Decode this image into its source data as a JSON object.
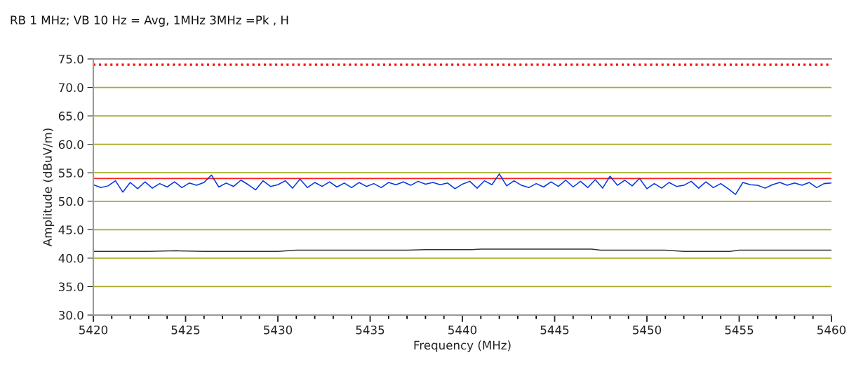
{
  "chart_data": {
    "type": "line",
    "title": "RB 1 MHz; VB 10 Hz = Avg, 1MHz 3MHz =Pk , H",
    "xlabel": "Frequency (MHz)",
    "ylabel": "Amplitude (dBuV/m)",
    "xlim": [
      5420,
      5460
    ],
    "xticks": [
      5420,
      {
        "value": 5421,
        "label": null
      },
      {
        "value": 5422,
        "label": null
      },
      {
        "value": 5423,
        "label": null
      },
      {
        "value": 5424,
        "label": null
      },
      5425,
      {
        "value": 5426,
        "label": null
      },
      {
        "value": 5427,
        "label": null
      },
      {
        "value": 5428,
        "label": null
      },
      {
        "value": 5429,
        "label": null
      },
      5430,
      {
        "value": 5431,
        "label": null
      },
      {
        "value": 5432,
        "label": null
      },
      {
        "value": 5433,
        "label": null
      },
      {
        "value": 5434,
        "label": null
      },
      5435,
      {
        "value": 5436,
        "label": null
      },
      {
        "value": 5437,
        "label": null
      },
      {
        "value": 5438,
        "label": null
      },
      {
        "value": 5439,
        "label": null
      },
      5440,
      {
        "value": 5441,
        "label": null
      },
      {
        "value": 5442,
        "label": null
      },
      {
        "value": 5443,
        "label": null
      },
      {
        "value": 5444,
        "label": null
      },
      5445,
      {
        "value": 5446,
        "label": null
      },
      {
        "value": 5447,
        "label": null
      },
      {
        "value": 5448,
        "label": null
      },
      {
        "value": 5449,
        "label": null
      },
      5450,
      {
        "value": 5451,
        "label": null
      },
      {
        "value": 5452,
        "label": null
      },
      {
        "value": 5453,
        "label": null
      },
      {
        "value": 5454,
        "label": null
      },
      5455,
      {
        "value": 5456,
        "label": null
      },
      {
        "value": 5457,
        "label": null
      },
      {
        "value": 5458,
        "label": null
      },
      {
        "value": 5459,
        "label": null
      },
      5460
    ],
    "ylim": [
      30,
      75
    ],
    "yticks": [
      {
        "value": 30,
        "label": "30.0"
      },
      {
        "value": 35,
        "label": "35.0"
      },
      {
        "value": 40,
        "label": "40.0"
      },
      {
        "value": 45,
        "label": "45.0"
      },
      {
        "value": 50,
        "label": "50.0"
      },
      {
        "value": 55,
        "label": "55.0"
      },
      {
        "value": 60,
        "label": "60.0"
      },
      {
        "value": 65,
        "label": "65.0"
      },
      {
        "value": 70,
        "label": "70.0"
      },
      {
        "value": 75,
        "label": "75.0"
      }
    ],
    "grid": "y",
    "legend": false,
    "marker": "none",
    "line_style": "solid",
    "ref_lines": [
      {
        "axis": "y",
        "value": 74,
        "label": null,
        "color": "#ff0000",
        "line_style": "dotted"
      },
      {
        "axis": "y",
        "value": 54,
        "label": null,
        "color": "#ff2020",
        "line_style": "solid"
      }
    ],
    "series": [
      {
        "color": "#0038e0",
        "x": [
          5420.0,
          5420.4,
          5420.8,
          5421.2,
          5421.6,
          5422.0,
          5422.4,
          5422.8,
          5423.2,
          5423.6,
          5424.0,
          5424.4,
          5424.8,
          5425.2,
          5425.6,
          5426.0,
          5426.4,
          5426.8,
          5427.2,
          5427.6,
          5428.0,
          5428.4,
          5428.8,
          5429.2,
          5429.6,
          5430.0,
          5430.4,
          5430.8,
          5431.2,
          5431.6,
          5432.0,
          5432.4,
          5432.8,
          5433.2,
          5433.6,
          5434.0,
          5434.4,
          5434.8,
          5435.2,
          5435.6,
          5436.0,
          5436.4,
          5436.8,
          5437.2,
          5437.6,
          5438.0,
          5438.4,
          5438.8,
          5439.2,
          5439.6,
          5440.0,
          5440.4,
          5440.8,
          5441.2,
          5441.6,
          5442.0,
          5442.4,
          5442.8,
          5443.2,
          5443.6,
          5444.0,
          5444.4,
          5444.8,
          5445.2,
          5445.6,
          5446.0,
          5446.4,
          5446.8,
          5447.2,
          5447.6,
          5448.0,
          5448.4,
          5448.8,
          5449.2,
          5449.6,
          5450.0,
          5450.4,
          5450.8,
          5451.2,
          5451.6,
          5452.0,
          5452.4,
          5452.8,
          5453.2,
          5453.6,
          5454.0,
          5454.4,
          5454.8,
          5455.2,
          5455.6,
          5456.0,
          5456.4,
          5456.8,
          5457.2,
          5457.6,
          5458.0,
          5458.4,
          5458.8,
          5459.2,
          5459.6,
          5460.0
        ],
        "values": [
          52.9,
          52.4,
          52.7,
          53.6,
          51.6,
          53.3,
          52.2,
          53.4,
          52.3,
          53.1,
          52.5,
          53.4,
          52.4,
          53.2,
          52.8,
          53.3,
          54.6,
          52.5,
          53.2,
          52.6,
          53.7,
          52.9,
          52.0,
          53.6,
          52.6,
          52.9,
          53.6,
          52.3,
          53.9,
          52.4,
          53.3,
          52.6,
          53.4,
          52.5,
          53.2,
          52.4,
          53.3,
          52.6,
          53.1,
          52.4,
          53.3,
          52.9,
          53.4,
          52.8,
          53.5,
          53.0,
          53.3,
          52.9,
          53.2,
          52.2,
          53.0,
          53.5,
          52.3,
          53.6,
          52.9,
          54.8,
          52.7,
          53.6,
          52.8,
          52.4,
          53.1,
          52.5,
          53.4,
          52.6,
          53.7,
          52.5,
          53.5,
          52.4,
          53.8,
          52.3,
          54.4,
          52.8,
          53.7,
          52.7,
          54.0,
          52.2,
          53.1,
          52.3,
          53.3,
          52.6,
          52.8,
          53.5,
          52.3,
          53.4,
          52.4,
          53.1,
          52.2,
          51.2,
          53.3,
          52.9,
          52.8,
          52.3,
          52.9,
          53.3,
          52.8,
          53.2,
          52.8,
          53.3,
          52.4,
          53.1,
          53.2
        ]
      },
      {
        "color": "#333333",
        "x": [
          5420,
          5423,
          5424.5,
          5426,
          5428,
          5430,
          5431,
          5432,
          5437,
          5438,
          5440.5,
          5441,
          5445,
          5447,
          5447.5,
          5451,
          5452,
          5454.5,
          5455,
          5460
        ],
        "values": [
          41.2,
          41.2,
          41.3,
          41.2,
          41.2,
          41.2,
          41.4,
          41.4,
          41.4,
          41.5,
          41.5,
          41.6,
          41.6,
          41.6,
          41.4,
          41.4,
          41.2,
          41.2,
          41.4,
          41.4
        ]
      }
    ]
  }
}
